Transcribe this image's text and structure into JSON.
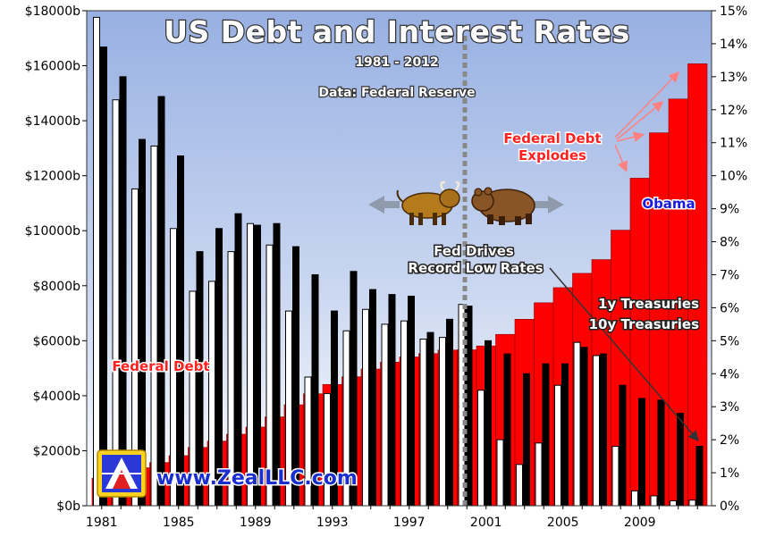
{
  "chart_data": {
    "type": "bar",
    "title": "US Debt and Interest Rates",
    "subtitle": "1981 - 2012",
    "source": "Data: Federal Reserve",
    "xlabel": "",
    "ylabel": "",
    "x_tick_labels": [
      "1981",
      "1985",
      "1989",
      "1993",
      "1997",
      "2001",
      "2005",
      "2009"
    ],
    "categories": [
      1981,
      1982,
      1983,
      1984,
      1985,
      1986,
      1987,
      1988,
      1989,
      1990,
      1991,
      1992,
      1993,
      1994,
      1995,
      1996,
      1997,
      1998,
      1999,
      2000,
      2001,
      2002,
      2003,
      2004,
      2005,
      2006,
      2007,
      2008,
      2009,
      2010,
      2011,
      2012
    ],
    "y_left": {
      "range": [
        0,
        18000
      ],
      "tick_values": [
        0,
        2000,
        4000,
        6000,
        8000,
        10000,
        12000,
        14000,
        16000,
        18000
      ],
      "tick_labels": [
        "$0b",
        "$2000b",
        "$4000b",
        "$6000b",
        "$8000b",
        "$10000b",
        "$12000b",
        "$14000b",
        "$16000b",
        "$18000b"
      ]
    },
    "y_right": {
      "range": [
        0,
        15
      ],
      "tick_values": [
        0,
        1,
        2,
        3,
        4,
        5,
        6,
        7,
        8,
        9,
        10,
        11,
        12,
        13,
        14,
        15
      ],
      "tick_labels": [
        "0%",
        "1%",
        "2%",
        "3%",
        "4%",
        "5%",
        "6%",
        "7%",
        "8%",
        "9%",
        "10%",
        "11%",
        "12%",
        "13%",
        "14%",
        "15%"
      ]
    },
    "series": [
      {
        "name": "Federal Debt",
        "axis": "left",
        "color": "#ff0000",
        "values": [
          1000,
          1150,
          1380,
          1570,
          1820,
          2120,
          2350,
          2600,
          2860,
          3230,
          3670,
          4070,
          4410,
          4690,
          4970,
          5220,
          5410,
          5530,
          5660,
          5670,
          5810,
          6230,
          6780,
          7380,
          7930,
          8450,
          8950,
          10020,
          11910,
          13560,
          14790,
          16070
        ]
      },
      {
        "name": "1y Treasuries",
        "axis": "right",
        "color": "#ffffff",
        "values": [
          14.8,
          12.3,
          9.6,
          10.9,
          8.4,
          6.5,
          6.8,
          7.7,
          8.55,
          7.9,
          5.9,
          3.9,
          3.4,
          5.3,
          5.95,
          5.5,
          5.6,
          5.05,
          5.1,
          6.1,
          3.5,
          2.0,
          1.25,
          1.9,
          3.65,
          4.95,
          4.55,
          1.8,
          0.45,
          0.3,
          0.15,
          0.17
        ]
      },
      {
        "name": "10y Treasuries",
        "axis": "right",
        "color": "#000000",
        "values": [
          13.9,
          13.0,
          11.1,
          12.4,
          10.6,
          7.7,
          8.4,
          8.85,
          8.5,
          8.55,
          7.85,
          7.0,
          5.9,
          7.1,
          6.55,
          6.4,
          6.35,
          5.25,
          5.65,
          6.05,
          5.0,
          4.6,
          4.0,
          4.3,
          4.3,
          4.8,
          4.6,
          3.65,
          3.25,
          3.2,
          2.8,
          1.8
        ]
      }
    ],
    "annotations": [
      {
        "name": "fed-drives",
        "lines": [
          "Fed Drives",
          "Record Low Rates"
        ]
      },
      {
        "name": "debt-explodes",
        "lines": [
          "Federal Debt",
          "Explodes"
        ]
      },
      {
        "name": "obama",
        "lines": [
          "Obama"
        ]
      },
      {
        "name": "federal-debt-label",
        "lines": [
          "Federal Debt"
        ]
      },
      {
        "name": "treasury-labels",
        "lines": [
          "1y Treasuries",
          "10y Treasuries"
        ]
      }
    ],
    "watermark": "www.ZealLLC.com",
    "grid": false,
    "colors": {
      "background_top": "#9cb4e4",
      "background_bottom": "#ffffff",
      "divider": "#888888"
    }
  }
}
